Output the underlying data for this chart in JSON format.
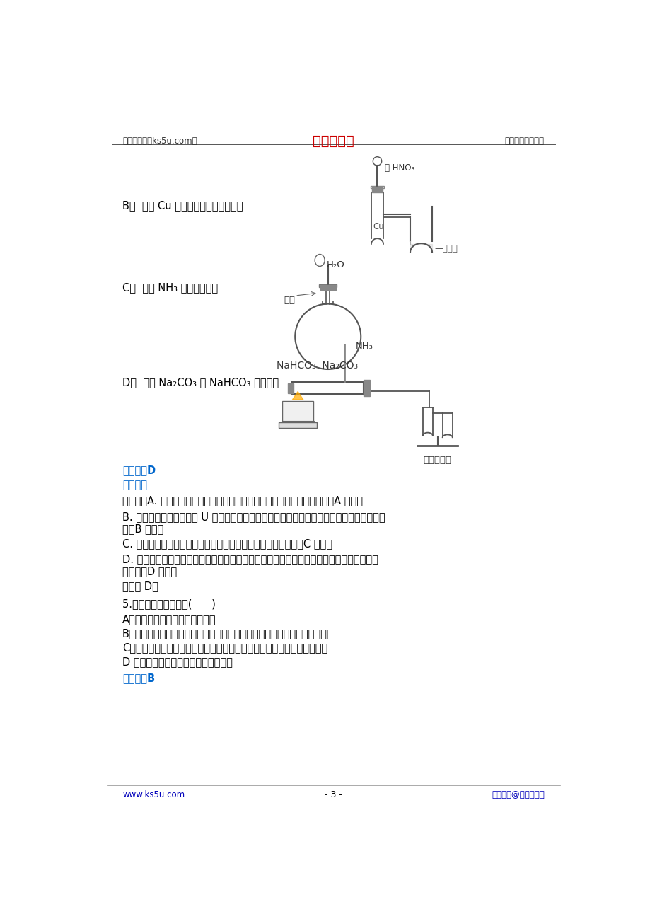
{
  "bg_color": "#ffffff",
  "header_left": "高考资源网（ks5u.com）",
  "header_center": "高考资源网",
  "header_right": "您身边的高考专家",
  "header_center_color": "#cc0000",
  "footer_left": "www.ks5u.com",
  "footer_center": "- 3 -",
  "footer_right": "版权所有@高考资源网",
  "footer_color": "#0000bb",
  "label_b": "B．  验证 Cu 与浓硕酸反应的热量变化",
  "label_c": "C．  验证 NH₃ 易溡于水气球",
  "label_d": "D．  比较 Na₂CO₃ 与 NaHCO₃ 的稳定性",
  "ans_label": "【答案】D",
  "ana_label": "【解析】",
  "blue": "#0066cc",
  "detail_a": "【详解】A. 二氧化硫易与氢氧化钙反应而导致烧瓶压强减小，可形成噴泉，A 正确；",
  "detail_b1": "B. 如反应为放热反应，则 U 形管左端液面下降，右端液面上升，可判断反应是否属于放热反",
  "detail_b2": "应，B 正确；",
  "detail_c": "C. 如气球体积变大，则烧瓶内压强减小，可说明氨气易溡于水，C 正确；",
  "detail_d1": "D. 套装小试管加热温度较低，碳酸氢钙应放在套装小试管中，通过澄清水是否变浑流可证明",
  "detail_d2": "稳定性，D 错误。",
  "ans_select": "答案选 D。",
  "q5": "5.下列叙述不正确的是(      )",
  "q5a": "A．氨易液化，液氨常用作制冷剑",
  "q5b": "B．与金属反应时，稀硕酸可能被还原为更低价态，稀硕酸氧化性强于浓硕酸",
  "q5c": "C．鐵盐受热易分解，因此贮存鐵态氮肘时要密封保存，并放在阴凉通风处",
  "q5d": "D 稀硕酸和活泼金属反应时得不到氢气",
  "final_ans": "【答案】B"
}
